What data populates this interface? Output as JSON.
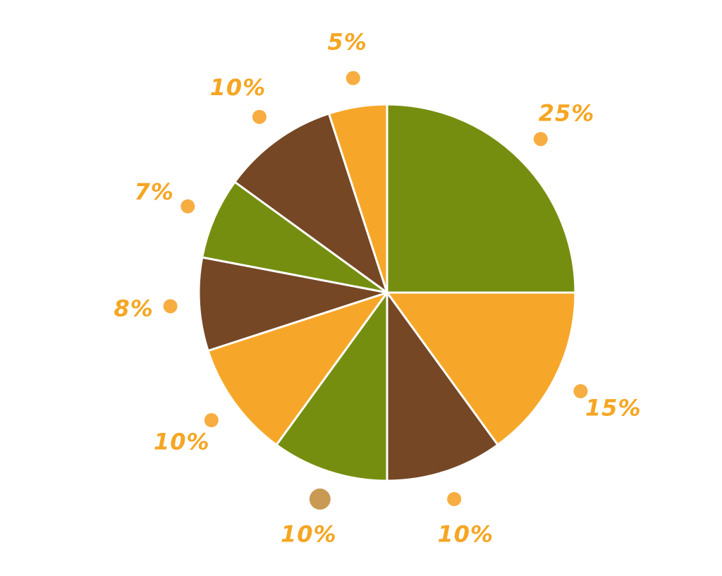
{
  "chart_data": {
    "type": "pie",
    "start_angle_deg": 0,
    "direction": "clockwise",
    "slices": [
      {
        "value": 25,
        "label": "25%",
        "color": "#768e10"
      },
      {
        "value": 15,
        "label": "15%",
        "color": "#f6a729"
      },
      {
        "value": 10,
        "label": "10%",
        "color": "#754725"
      },
      {
        "value": 10,
        "label": "10%",
        "color": "#768e10"
      },
      {
        "value": 10,
        "label": "10%",
        "color": "#f6a729"
      },
      {
        "value": 8,
        "label": "8%",
        "color": "#754725"
      },
      {
        "value": 7,
        "label": "7%",
        "color": "#768e10"
      },
      {
        "value": 10,
        "label": "10%",
        "color": "#754725"
      },
      {
        "value": 5,
        "label": "5%",
        "color": "#f6a729"
      }
    ],
    "label_color": "#f5a623",
    "marker_color": "#f7ad40",
    "highlight_marker_color": "#c99a53",
    "highlighted_slice_index": 3,
    "legend": "none",
    "grid": false
  }
}
